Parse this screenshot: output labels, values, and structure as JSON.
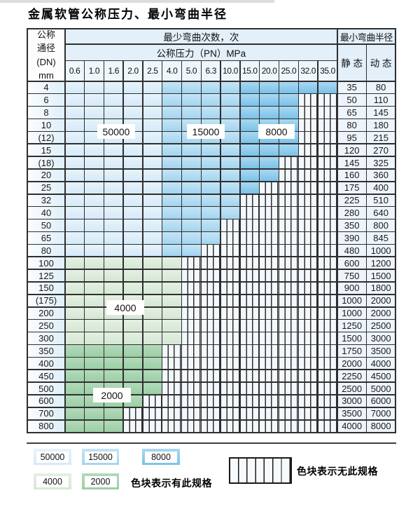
{
  "title": "金属软管公称压力、最小弯曲半径",
  "table": {
    "dn_header": "公称\n通径\n(DN)\nmm",
    "cycles_header": "最少弯曲次数，次",
    "pressure_header": "公称压力（PN）MPa",
    "radius_header": "最小弯曲半径",
    "static_header": "静 态",
    "dynamic_header": "动 态",
    "pressures": [
      "0.6",
      "1.0",
      "1.6",
      "2.0",
      "2.5",
      "4.0",
      "5.0",
      "6.3",
      "10.0",
      "15.0",
      "20.0",
      "25.0",
      "32.0",
      "35.0"
    ],
    "rows": [
      {
        "dn": "4",
        "zone": "blue",
        "last": 13,
        "static": "35",
        "dynamic": "80"
      },
      {
        "dn": "6",
        "zone": "blue",
        "last": 11,
        "static": "50",
        "dynamic": "110"
      },
      {
        "dn": "8",
        "zone": "blue",
        "last": 11,
        "static": "65",
        "dynamic": "145"
      },
      {
        "dn": "10",
        "zone": "blue",
        "last": 11,
        "static": "80",
        "dynamic": "180"
      },
      {
        "dn": "(12)",
        "zone": "blue",
        "last": 11,
        "static": "95",
        "dynamic": "215"
      },
      {
        "dn": "15",
        "zone": "blue",
        "last": 11,
        "static": "120",
        "dynamic": "270"
      },
      {
        "dn": "(18)",
        "zone": "blue",
        "last": 10,
        "static": "145",
        "dynamic": "325"
      },
      {
        "dn": "20",
        "zone": "blue",
        "last": 10,
        "static": "160",
        "dynamic": "360"
      },
      {
        "dn": "25",
        "zone": "blue",
        "last": 9,
        "static": "175",
        "dynamic": "400"
      },
      {
        "dn": "32",
        "zone": "blue",
        "last": 8,
        "static": "225",
        "dynamic": "510"
      },
      {
        "dn": "40",
        "zone": "blue",
        "last": 8,
        "static": "280",
        "dynamic": "640"
      },
      {
        "dn": "50",
        "zone": "blue",
        "last": 7,
        "static": "350",
        "dynamic": "800"
      },
      {
        "dn": "65",
        "zone": "blue",
        "last": 7,
        "static": "390",
        "dynamic": "845"
      },
      {
        "dn": "80",
        "zone": "blue",
        "last": 6,
        "static": "480",
        "dynamic": "1000"
      },
      {
        "dn": "100",
        "zone": "g4000",
        "last": 5,
        "static": "600",
        "dynamic": "1200"
      },
      {
        "dn": "125",
        "zone": "g4000",
        "last": 5,
        "static": "750",
        "dynamic": "1500"
      },
      {
        "dn": "150",
        "zone": "g4000",
        "last": 5,
        "static": "900",
        "dynamic": "1800"
      },
      {
        "dn": "(175)",
        "zone": "g4000",
        "last": 5,
        "static": "1000",
        "dynamic": "2000"
      },
      {
        "dn": "200",
        "zone": "g4000",
        "last": 5,
        "static": "1000",
        "dynamic": "2000"
      },
      {
        "dn": "250",
        "zone": "g4000",
        "last": 5,
        "static": "1250",
        "dynamic": "2500"
      },
      {
        "dn": "300",
        "zone": "g4000",
        "last": 5,
        "static": "1500",
        "dynamic": "3000"
      },
      {
        "dn": "350",
        "zone": "g2000",
        "last": 4,
        "static": "1750",
        "dynamic": "3500"
      },
      {
        "dn": "400",
        "zone": "g2000",
        "last": 4,
        "static": "2000",
        "dynamic": "4000"
      },
      {
        "dn": "450",
        "zone": "g2000",
        "last": 4,
        "static": "2250",
        "dynamic": "4500"
      },
      {
        "dn": "500",
        "zone": "g2000",
        "last": 4,
        "static": "2500",
        "dynamic": "5000"
      },
      {
        "dn": "600",
        "zone": "g2000",
        "last": 3,
        "static": "3000",
        "dynamic": "6000"
      },
      {
        "dn": "700",
        "zone": "g2000",
        "last": 2,
        "static": "3500",
        "dynamic": "7000"
      },
      {
        "dn": "800",
        "zone": "g2000",
        "last": 2,
        "static": "4000",
        "dynamic": "8000"
      }
    ]
  },
  "overlay": {
    "l50000": "50000",
    "l15000": "15000",
    "l8000": "8000",
    "l4000": "4000",
    "l2000": "2000"
  },
  "legend": {
    "items": [
      {
        "label": "50000"
      },
      {
        "label": "15000"
      },
      {
        "label": "8000"
      },
      {
        "label": "4000"
      },
      {
        "label": "2000"
      }
    ],
    "has_spec_note": "色块表示有此规格",
    "no_spec_note": "色块表示无此规格"
  },
  "colors": {
    "grid_line": "#2f2f2f",
    "c50000": "#d5eaf8",
    "c50000_light": "#e7f3fb",
    "c15000": "#a3d5f0",
    "c15000_light": "#c4e4f5",
    "c8000": "#7ac2e9",
    "c8000_light": "#a9d8f1",
    "c4000": "#d5e8d4",
    "c4000_light": "#e4f0e3",
    "c2000": "#9bcfa4",
    "c2000_light": "#b3dabb",
    "stripe_bg": "#f3f8fd",
    "header_bg": "#e3eff9",
    "subheader_bg": "#eff6fc",
    "value_bg": "#edf4fb",
    "dn_to": "#e0effa"
  }
}
